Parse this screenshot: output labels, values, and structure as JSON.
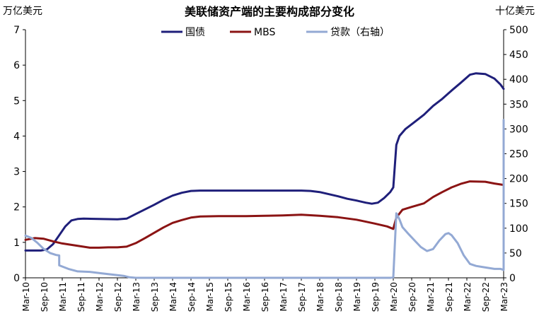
{
  "chart_data": {
    "type": "line",
    "title": "美联储资产端的主要构成部分变化",
    "ylabel_left": "万亿美元",
    "ylabel_right": "十亿美元",
    "xlabel": "",
    "x_tick_labels": [
      "Mar-10",
      "Sep-10",
      "Mar-11",
      "Sep-11",
      "Mar-12",
      "Sep-12",
      "Mar-13",
      "Sep-13",
      "Mar-14",
      "Sep-14",
      "Mar-15",
      "Sep-15",
      "Mar-16",
      "Sep-16",
      "Mar-17",
      "Sep-17",
      "Mar-18",
      "Sep-18",
      "Mar-19",
      "Sep-19",
      "Mar-20",
      "Sep-20",
      "Mar-21",
      "Sep-21",
      "Mar-22",
      "Sep-22",
      "Mar-23"
    ],
    "ylim_left": [
      0,
      7
    ],
    "y_ticks_left": [
      0,
      1,
      2,
      3,
      4,
      5,
      6,
      7
    ],
    "ylim_right": [
      0,
      500
    ],
    "y_ticks_right": [
      0,
      50,
      100,
      150,
      200,
      250,
      300,
      350,
      400,
      450,
      500
    ],
    "grid": false,
    "legend_position": "top",
    "series": [
      {
        "name": "国债",
        "axis": "left",
        "color": "#1f1f7a",
        "points": [
          [
            "2010-03",
            0.77
          ],
          [
            "2010-08",
            0.77
          ],
          [
            "2010-10",
            0.8
          ],
          [
            "2010-12",
            0.95
          ],
          [
            "2011-02",
            1.2
          ],
          [
            "2011-04",
            1.45
          ],
          [
            "2011-06",
            1.62
          ],
          [
            "2011-08",
            1.66
          ],
          [
            "2011-10",
            1.67
          ],
          [
            "2012-03",
            1.66
          ],
          [
            "2012-09",
            1.65
          ],
          [
            "2012-12",
            1.67
          ],
          [
            "2013-03",
            1.8
          ],
          [
            "2013-06",
            1.93
          ],
          [
            "2013-09",
            2.06
          ],
          [
            "2013-12",
            2.2
          ],
          [
            "2014-03",
            2.32
          ],
          [
            "2014-06",
            2.4
          ],
          [
            "2014-09",
            2.45
          ],
          [
            "2014-12",
            2.46
          ],
          [
            "2015-06",
            2.46
          ],
          [
            "2016-03",
            2.46
          ],
          [
            "2016-09",
            2.46
          ],
          [
            "2017-03",
            2.46
          ],
          [
            "2017-09",
            2.46
          ],
          [
            "2017-12",
            2.45
          ],
          [
            "2018-03",
            2.42
          ],
          [
            "2018-06",
            2.36
          ],
          [
            "2018-09",
            2.3
          ],
          [
            "2018-12",
            2.23
          ],
          [
            "2019-03",
            2.18
          ],
          [
            "2019-06",
            2.12
          ],
          [
            "2019-08",
            2.09
          ],
          [
            "2019-10",
            2.12
          ],
          [
            "2019-12",
            2.25
          ],
          [
            "2020-02",
            2.42
          ],
          [
            "2020-03",
            2.55
          ],
          [
            "2020-04",
            3.75
          ],
          [
            "2020-05",
            4.0
          ],
          [
            "2020-07",
            4.2
          ],
          [
            "2020-10",
            4.4
          ],
          [
            "2021-01",
            4.6
          ],
          [
            "2021-04",
            4.85
          ],
          [
            "2021-07",
            5.05
          ],
          [
            "2021-10",
            5.28
          ],
          [
            "2022-01",
            5.5
          ],
          [
            "2022-04",
            5.73
          ],
          [
            "2022-06",
            5.77
          ],
          [
            "2022-09",
            5.75
          ],
          [
            "2022-12",
            5.62
          ],
          [
            "2023-02",
            5.45
          ],
          [
            "2023-03",
            5.33
          ]
        ]
      },
      {
        "name": "MBS",
        "axis": "left",
        "color": "#8b1414",
        "points": [
          [
            "2010-03",
            1.07
          ],
          [
            "2010-06",
            1.12
          ],
          [
            "2010-09",
            1.1
          ],
          [
            "2010-12",
            1.03
          ],
          [
            "2011-03",
            0.97
          ],
          [
            "2011-06",
            0.93
          ],
          [
            "2011-09",
            0.89
          ],
          [
            "2011-12",
            0.85
          ],
          [
            "2012-03",
            0.85
          ],
          [
            "2012-06",
            0.86
          ],
          [
            "2012-09",
            0.86
          ],
          [
            "2012-12",
            0.88
          ],
          [
            "2013-03",
            0.98
          ],
          [
            "2013-06",
            1.12
          ],
          [
            "2013-09",
            1.27
          ],
          [
            "2013-12",
            1.42
          ],
          [
            "2014-03",
            1.55
          ],
          [
            "2014-06",
            1.63
          ],
          [
            "2014-09",
            1.7
          ],
          [
            "2014-12",
            1.73
          ],
          [
            "2015-06",
            1.74
          ],
          [
            "2016-03",
            1.74
          ],
          [
            "2016-09",
            1.75
          ],
          [
            "2017-03",
            1.76
          ],
          [
            "2017-09",
            1.78
          ],
          [
            "2018-03",
            1.75
          ],
          [
            "2018-09",
            1.71
          ],
          [
            "2019-03",
            1.64
          ],
          [
            "2019-09",
            1.53
          ],
          [
            "2020-01",
            1.45
          ],
          [
            "2020-03",
            1.38
          ],
          [
            "2020-04",
            1.7
          ],
          [
            "2020-06",
            1.92
          ],
          [
            "2020-09",
            2.0
          ],
          [
            "2021-01",
            2.1
          ],
          [
            "2021-04",
            2.28
          ],
          [
            "2021-07",
            2.42
          ],
          [
            "2021-10",
            2.55
          ],
          [
            "2022-01",
            2.65
          ],
          [
            "2022-04",
            2.72
          ],
          [
            "2022-09",
            2.71
          ],
          [
            "2022-12",
            2.66
          ],
          [
            "2023-03",
            2.62
          ]
        ]
      },
      {
        "name": "贷款（右轴）",
        "axis": "right",
        "color": "#93a9d4",
        "points": [
          [
            "2010-03",
            85
          ],
          [
            "2010-05",
            80
          ],
          [
            "2010-07",
            70
          ],
          [
            "2010-09",
            58
          ],
          [
            "2010-11",
            50
          ],
          [
            "2011-01",
            46
          ],
          [
            "2011-02",
            45
          ],
          [
            "2011-02",
            25
          ],
          [
            "2011-05",
            18
          ],
          [
            "2011-08",
            13
          ],
          [
            "2011-12",
            12
          ],
          [
            "2012-04",
            9
          ],
          [
            "2012-08",
            6
          ],
          [
            "2012-11",
            4
          ],
          [
            "2013-01",
            1
          ],
          [
            "2013-03",
            0
          ],
          [
            "2015-01",
            0
          ],
          [
            "2018-01",
            0
          ],
          [
            "2020-02",
            0
          ],
          [
            "2020-03",
            1
          ],
          [
            "2020-04",
            130
          ],
          [
            "2020-05",
            118
          ],
          [
            "2020-06",
            102
          ],
          [
            "2020-08",
            88
          ],
          [
            "2020-10",
            75
          ],
          [
            "2020-12",
            62
          ],
          [
            "2021-02",
            54
          ],
          [
            "2021-04",
            58
          ],
          [
            "2021-06",
            75
          ],
          [
            "2021-08",
            88
          ],
          [
            "2021-09",
            90
          ],
          [
            "2021-10",
            86
          ],
          [
            "2021-12",
            70
          ],
          [
            "2022-02",
            45
          ],
          [
            "2022-04",
            28
          ],
          [
            "2022-06",
            24
          ],
          [
            "2022-08",
            22
          ],
          [
            "2022-10",
            20
          ],
          [
            "2022-12",
            18
          ],
          [
            "2023-02",
            18
          ],
          [
            "2023-03",
            16
          ],
          [
            "2023-03",
            318
          ]
        ]
      }
    ]
  }
}
